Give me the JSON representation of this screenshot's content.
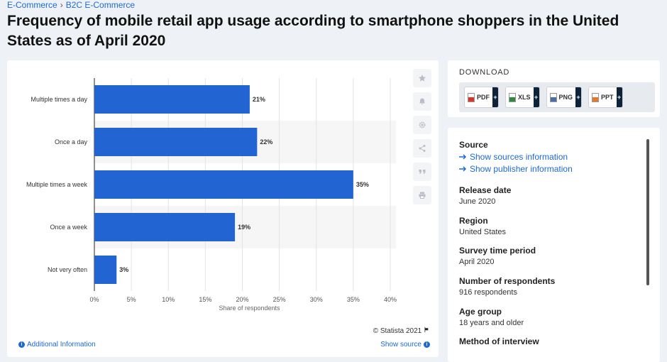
{
  "breadcrumb": {
    "items": [
      "E-Commerce",
      "B2C E-Commerce"
    ],
    "separator": "›"
  },
  "page_title": "Frequency of mobile retail app usage according to smartphone shoppers in the United States as of April 2020",
  "chart_data": {
    "type": "bar",
    "orientation": "horizontal",
    "categories": [
      "Multiple times a day",
      "Once a day",
      "Multiple times a week",
      "Once a week",
      "Not very often"
    ],
    "values": [
      21,
      22,
      35,
      19,
      3
    ],
    "value_labels": [
      "21%",
      "22%",
      "35%",
      "19%",
      "3%"
    ],
    "xlabel": "Share of respondents",
    "xlim": [
      0,
      40
    ],
    "xticks": [
      "0%",
      "5%",
      "10%",
      "15%",
      "20%",
      "25%",
      "30%",
      "35%",
      "40%"
    ],
    "bar_color": "#2264d1",
    "grid": true
  },
  "chart_footer": {
    "copyright": "© Statista 2021",
    "additional_info": "Additional Information",
    "show_source": "Show source"
  },
  "chart_tools": [
    "star-icon",
    "bell-icon",
    "gear-icon",
    "share-icon",
    "quote-icon",
    "print-icon"
  ],
  "download": {
    "title": "DOWNLOAD",
    "buttons": [
      {
        "label": "PDF",
        "color": "#d9342b"
      },
      {
        "label": "XLS",
        "color": "#2e8b3a"
      },
      {
        "label": "PNG",
        "color": "#4b6ea8"
      },
      {
        "label": "PPT",
        "color": "#e6772e"
      }
    ]
  },
  "details": {
    "source_label": "Source",
    "source_link": "Show sources information",
    "publisher_link": "Show publisher information",
    "release_date_label": "Release date",
    "release_date": "June 2020",
    "region_label": "Region",
    "region": "United States",
    "survey_period_label": "Survey time period",
    "survey_period": "April 2020",
    "respondents_label": "Number of respondents",
    "respondents": "916 respondents",
    "age_group_label": "Age group",
    "age_group": "18 years and older",
    "method_label": "Method of interview"
  }
}
